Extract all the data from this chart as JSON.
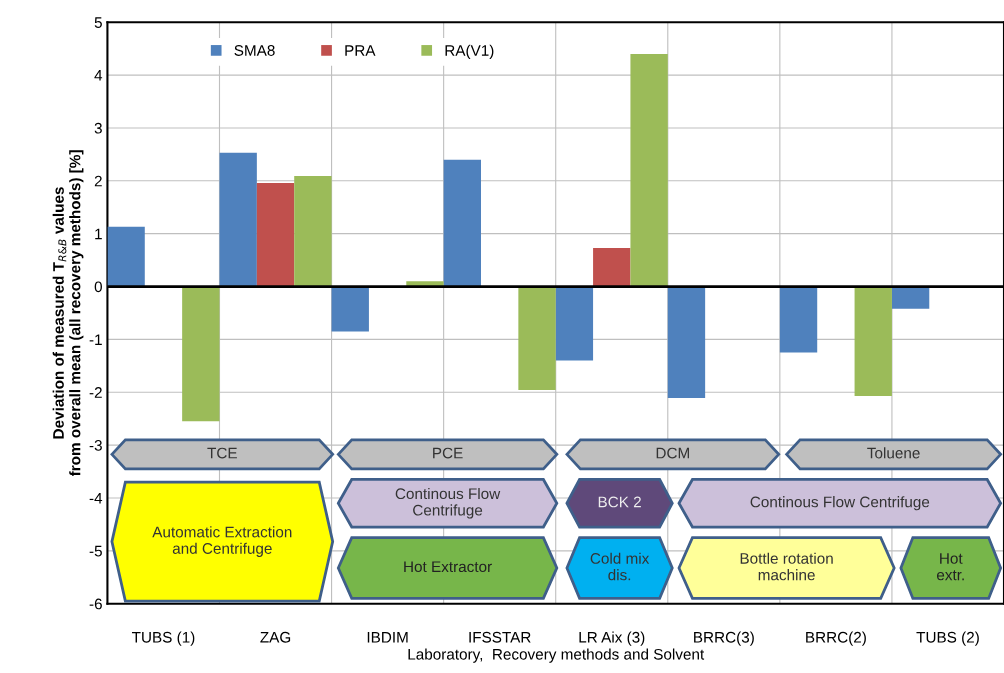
{
  "chart_data": {
    "type": "bar",
    "xlabel": "Laboratory,  Recovery methods and Solvent",
    "ylabel": "Deviation of measured T$_{R&B}$ values\nfrom overall mean (all recovery methods) [%]",
    "categories": [
      "TUBS (1)",
      "ZAG",
      "IBDIM",
      "IFSSTAR",
      "LR Aix (3)",
      "BRRC(3)",
      "BRRC(2)",
      "TUBS (2)"
    ],
    "series": [
      {
        "name": "SMA8",
        "color": "#4f81bd",
        "values": [
          1.13,
          2.53,
          -0.85,
          2.4,
          -1.4,
          -2.11,
          -1.25,
          -0.42
        ]
      },
      {
        "name": "PRA",
        "color": "#c0504d",
        "values": [
          null,
          1.96,
          null,
          null,
          0.73,
          null,
          null,
          null
        ]
      },
      {
        "name": "RA(V1)",
        "color": "#9bbb59",
        "values": [
          -2.55,
          2.09,
          0.1,
          -1.96,
          4.4,
          null,
          -2.07,
          null
        ]
      }
    ],
    "ylim": [
      -6,
      5
    ],
    "yticks": [
      -6,
      -5,
      -4,
      -3,
      -2,
      -1,
      0,
      1,
      2,
      3,
      4,
      5
    ],
    "grid": true,
    "legend": "top left",
    "annotations": [
      "TCE",
      "PCE",
      "DCM",
      "Toluene",
      "Automatic Extraction\nand Centrifuge",
      "Continous Flow\nCentrifuge",
      "Hot Extractor",
      "BCK 2",
      "Cold mix\ndis.",
      "Continous Flow Centrifuge",
      "Bottle rotation\nmachine",
      "Hot\nextr."
    ]
  }
}
